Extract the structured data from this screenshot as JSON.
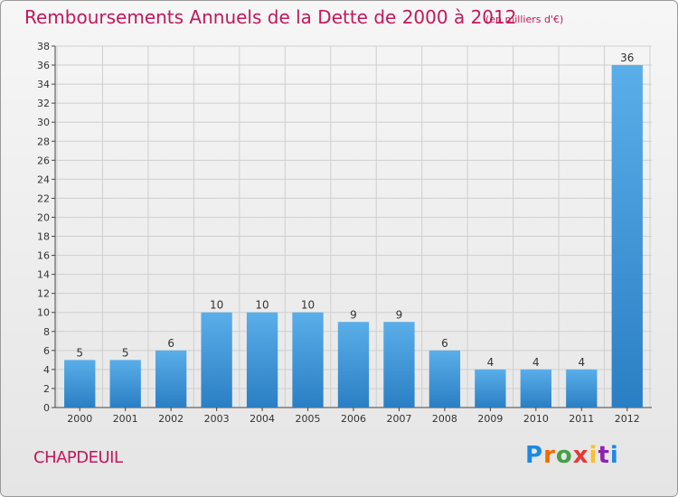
{
  "title": "Remboursements Annuels de la Dette de 2000 à 2012",
  "subtitle": "(en milliers d'€)",
  "city": "CHAPDEUIL",
  "logo": "Proxiti",
  "colors": {
    "title": "#c2185b",
    "bar_light": "#5aaee9",
    "bar_dark": "#2a7fc4",
    "grid": "#cfcfcf"
  },
  "chart_data": {
    "type": "bar",
    "title": "Remboursements Annuels de la Dette de 2000 à 2012",
    "subtitle": "(en milliers d'€)",
    "xlabel": "",
    "ylabel": "",
    "categories": [
      "2000",
      "2001",
      "2002",
      "2003",
      "2004",
      "2005",
      "2006",
      "2007",
      "2008",
      "2009",
      "2010",
      "2011",
      "2012"
    ],
    "values": [
      5,
      5,
      6,
      10,
      10,
      10,
      9,
      9,
      6,
      4,
      4,
      4,
      36
    ],
    "ylim": [
      0,
      38
    ],
    "y_ticks": [
      0,
      2,
      4,
      6,
      8,
      10,
      12,
      14,
      16,
      18,
      20,
      22,
      24,
      26,
      28,
      30,
      32,
      34,
      36,
      38
    ],
    "grid": true,
    "data_labels": true
  }
}
